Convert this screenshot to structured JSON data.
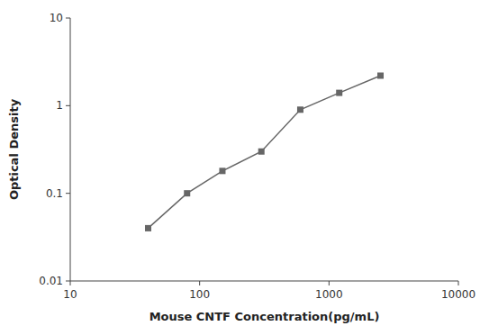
{
  "chart_data": {
    "type": "line",
    "x": [
      40,
      80,
      150,
      300,
      600,
      1200,
      2500
    ],
    "values": [
      0.04,
      0.1,
      0.18,
      0.3,
      0.9,
      1.4,
      2.2
    ],
    "xlabel": "Mouse CNTF Concentration(pg/mL)",
    "ylabel": "Optical Density",
    "xlim": [
      10,
      10000
    ],
    "ylim": [
      0.01,
      10
    ],
    "xticks": [
      10,
      100,
      1000,
      10000
    ],
    "yticks": [
      0.01,
      0.1,
      1,
      10
    ],
    "log": true,
    "grid": false,
    "color": "#666666",
    "marker": "square"
  }
}
